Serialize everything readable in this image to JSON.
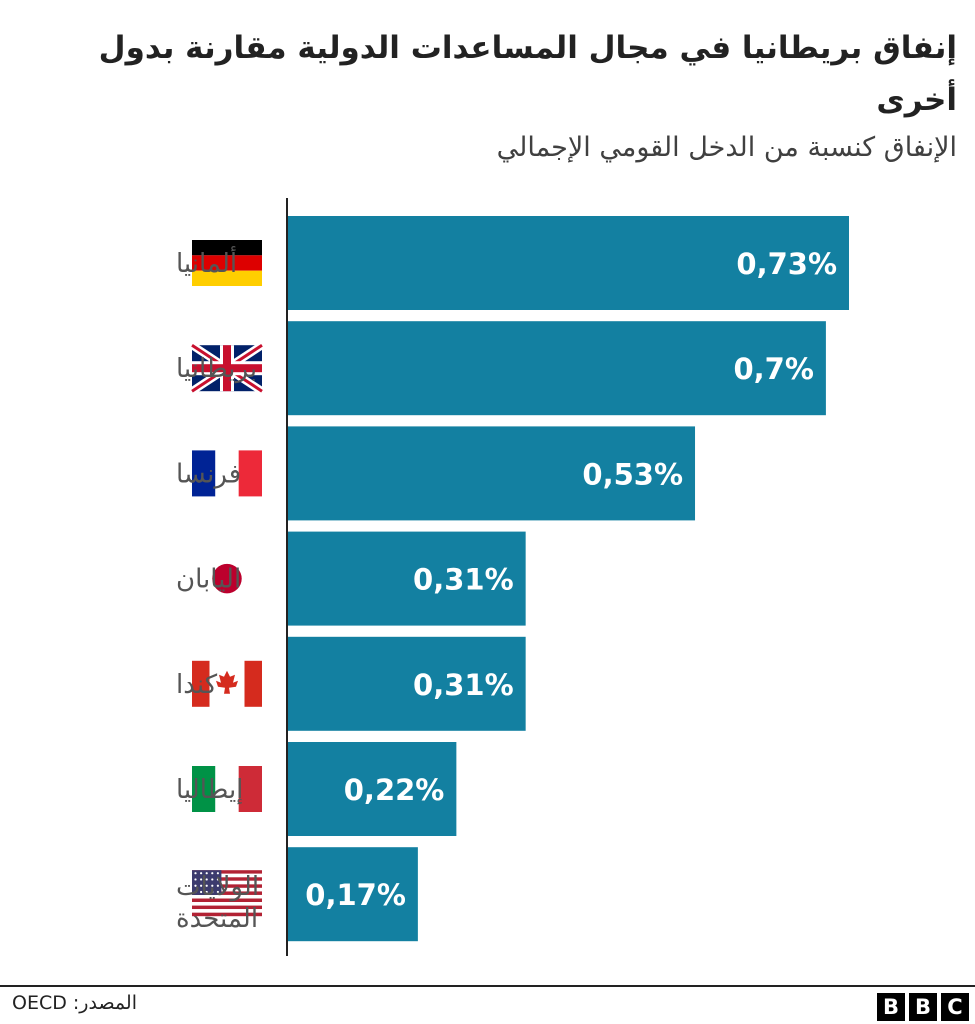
{
  "title": "إنفاق بريطانيا في مجال المساعدات الدولية مقارنة بدول أخرى",
  "subtitle": "الإنفاق كنسبة من الدخل القومي الإجمالي",
  "source": "المصدر: OECD",
  "logo": [
    "B",
    "B",
    "C"
  ],
  "colors": {
    "bar": "#1380A1",
    "axis": "#222222"
  },
  "chart_data": {
    "type": "bar",
    "orientation": "horizontal",
    "unit": "%",
    "categories": [
      {
        "name": "ألمانيا",
        "flag": "germany-flag-icon"
      },
      {
        "name": "بريطانيا",
        "flag": "uk-flag-icon"
      },
      {
        "name": "فرنسا",
        "flag": "france-flag-icon"
      },
      {
        "name": "اليابان",
        "flag": "japan-flag-icon"
      },
      {
        "name": "كندا",
        "flag": "canada-flag-icon"
      },
      {
        "name": "إيطاليا",
        "flag": "italy-flag-icon"
      },
      {
        "name": "الولايات المتحدة",
        "flag": "usa-flag-icon"
      }
    ],
    "values": [
      0.73,
      0.7,
      0.53,
      0.31,
      0.31,
      0.22,
      0.17
    ],
    "data_labels": [
      "0,73%",
      "0,7%",
      "0,53%",
      "0,31%",
      "0,31%",
      "0,22%",
      "0,17%"
    ],
    "xlim": [
      0,
      0.73
    ],
    "grid": false,
    "legend": "none"
  }
}
